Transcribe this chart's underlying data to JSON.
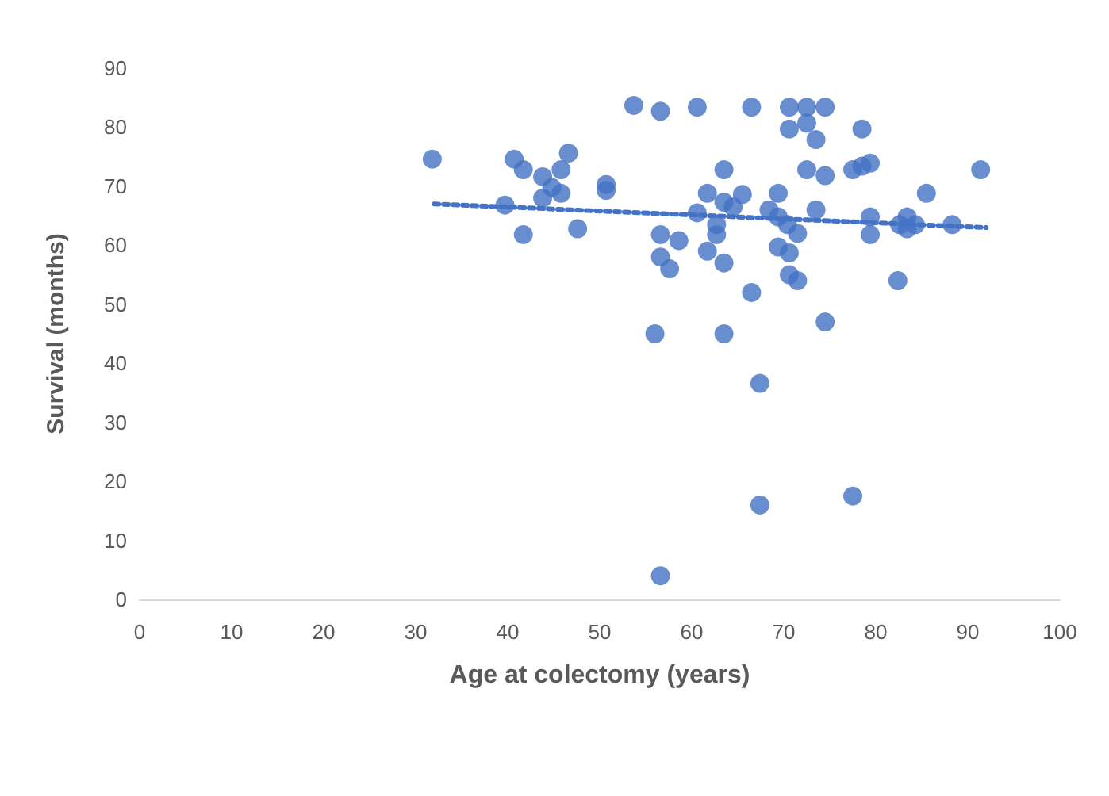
{
  "chart_data": {
    "type": "scatter",
    "xlabel": "Age at colectomy (years)",
    "ylabel": "Survival (months)",
    "xlim": [
      0,
      100
    ],
    "xticks": [
      0,
      10,
      20,
      30,
      40,
      50,
      60,
      70,
      80,
      90,
      100
    ],
    "ylim": [
      0,
      90
    ],
    "yticks": [
      0,
      10,
      20,
      30,
      40,
      50,
      60,
      70,
      80,
      90
    ],
    "grid": false,
    "marker": "circle",
    "series": [
      {
        "color": "#4472c4",
        "x": [
          31.8,
          40.7,
          41.7,
          46.6,
          45.8,
          43.8,
          44.8,
          45.8,
          43.8,
          39.7,
          41.7,
          47.6,
          50.7,
          50.7,
          53.7,
          56.6,
          60.6,
          60.6,
          61.7,
          63.5,
          56.6,
          58.6,
          56.6,
          57.6,
          61.7,
          63.5,
          62.7,
          62.7,
          63.5,
          64.5,
          65.5,
          66.5,
          70.6,
          72.5,
          74.5,
          72.5,
          70.6,
          73.5,
          78.5,
          72.5,
          74.5,
          77.5,
          78.5,
          79.4,
          91.4,
          85.5,
          68.4,
          69.4,
          69.4,
          70.4,
          71.5,
          69.4,
          70.6,
          73.5,
          79.4,
          79.4,
          83.4,
          84.3,
          83.4,
          82.6,
          88.3,
          70.6,
          71.5,
          66.5,
          82.4,
          56,
          63.5,
          67.4,
          74.5,
          67.4,
          77.5,
          56.6
        ],
        "values": [
          74.6,
          74.6,
          72.8,
          75.6,
          72.8,
          71.6,
          69.8,
          68.8,
          68,
          66.8,
          61.8,
          62.8,
          69.3,
          70.3,
          83.7,
          82.7,
          83.4,
          65.5,
          68.8,
          72.8,
          61.8,
          60.8,
          58,
          56,
          59,
          57,
          63.5,
          61.8,
          67.3,
          66.5,
          68.6,
          83.4,
          83.4,
          83.4,
          83.4,
          80.7,
          79.7,
          77.9,
          79.7,
          72.8,
          71.8,
          72.8,
          73.4,
          73.9,
          72.8,
          68.8,
          66,
          68.8,
          64.8,
          63.5,
          62,
          59.7,
          58.7,
          66,
          64.8,
          61.8,
          64.8,
          63.5,
          62.8,
          63.5,
          63.5,
          55,
          54,
          52,
          54,
          45,
          45,
          36.6,
          47,
          16,
          17.5,
          4
        ]
      },
      {
        "type": "line",
        "color": "#4472c4",
        "line_style": "dotted",
        "marker": "none",
        "x": [
          32,
          92
        ],
        "values": [
          67,
          63
        ]
      }
    ]
  }
}
